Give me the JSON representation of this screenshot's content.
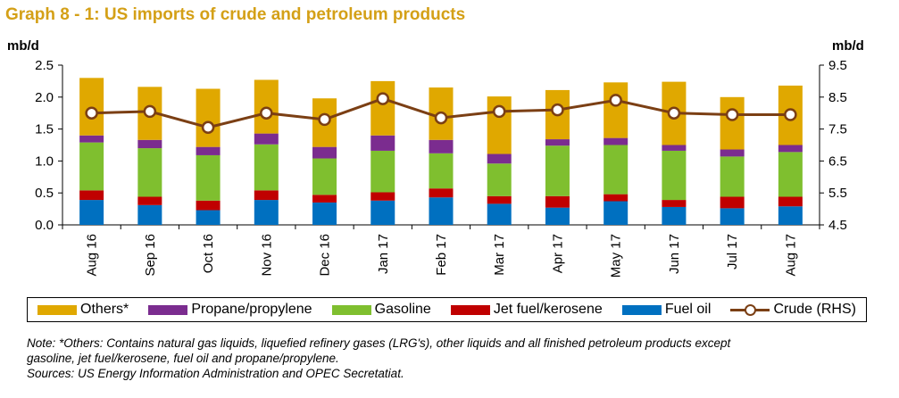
{
  "title": "Graph 8 - 1: US imports of crude and petroleum products",
  "chart_data": {
    "type": "bar",
    "stacked": true,
    "categories": [
      "Aug 16",
      "Sep 16",
      "Oct 16",
      "Nov 16",
      "Dec 16",
      "Jan 17",
      "Feb 17",
      "Mar 17",
      "Apr 17",
      "May 17",
      "Jun 17",
      "Jul 17",
      "Aug 17"
    ],
    "ylabel": "mb/d",
    "ylim": [
      0,
      2.5
    ],
    "yticks": [
      "0.0",
      "0.5",
      "1.0",
      "1.5",
      "2.0",
      "2.5"
    ],
    "y2label": "mb/d",
    "y2lim": [
      4.5,
      9.5
    ],
    "y2ticks": [
      "4.5",
      "5.5",
      "6.5",
      "7.5",
      "8.5",
      "9.5"
    ],
    "series": [
      {
        "name": "Fuel oil",
        "color": "#0070C0",
        "values": [
          0.39,
          0.31,
          0.23,
          0.39,
          0.35,
          0.38,
          0.43,
          0.33,
          0.27,
          0.37,
          0.28,
          0.26,
          0.29
        ]
      },
      {
        "name": "Jet fuel/kerosene",
        "color": "#C00000",
        "values": [
          0.15,
          0.13,
          0.15,
          0.15,
          0.12,
          0.13,
          0.14,
          0.12,
          0.18,
          0.11,
          0.11,
          0.18,
          0.15
        ]
      },
      {
        "name": "Gasoline",
        "color": "#7FBF2F",
        "values": [
          0.75,
          0.76,
          0.71,
          0.72,
          0.57,
          0.65,
          0.55,
          0.51,
          0.79,
          0.77,
          0.77,
          0.63,
          0.7
        ]
      },
      {
        "name": "Propane/propylene",
        "color": "#7B2C8F",
        "values": [
          0.11,
          0.13,
          0.13,
          0.17,
          0.18,
          0.24,
          0.21,
          0.15,
          0.1,
          0.11,
          0.09,
          0.11,
          0.11
        ]
      },
      {
        "name": "Others*",
        "color": "#E0A800",
        "values": [
          0.9,
          0.83,
          0.91,
          0.84,
          0.76,
          0.85,
          0.82,
          0.9,
          0.77,
          0.87,
          0.99,
          0.82,
          0.93
        ]
      }
    ],
    "line_series": {
      "name": "Crude (RHS)",
      "color": "#7B3F14",
      "axis": "right",
      "values": [
        8.0,
        8.05,
        7.55,
        8.0,
        7.8,
        8.45,
        7.85,
        8.05,
        8.1,
        8.4,
        8.0,
        7.95,
        7.95
      ]
    },
    "legend_order": [
      "Others*",
      "Propane/propylene",
      "Gasoline",
      "Jet fuel/kerosene",
      "Fuel oil",
      "Crude (RHS)"
    ],
    "legend_position": "bottom",
    "grid": false
  },
  "legend": {
    "others": "Others*",
    "propane": "Propane/propylene",
    "gasoline": "Gasoline",
    "jet": "Jet fuel/kerosene",
    "fueloil": "Fuel oil",
    "crude": "Crude (RHS)"
  },
  "notes": {
    "line1": "Note: *Others: Contains natural gas liquids, liquefied refinery gases (LRG's), other liquids and all finished petroleum products except",
    "line2": "gasoline, jet fuel/kerosene, fuel oil and propane/propylene.",
    "line3": "Sources: US Energy Information Administration and OPEC Secretatiat."
  }
}
